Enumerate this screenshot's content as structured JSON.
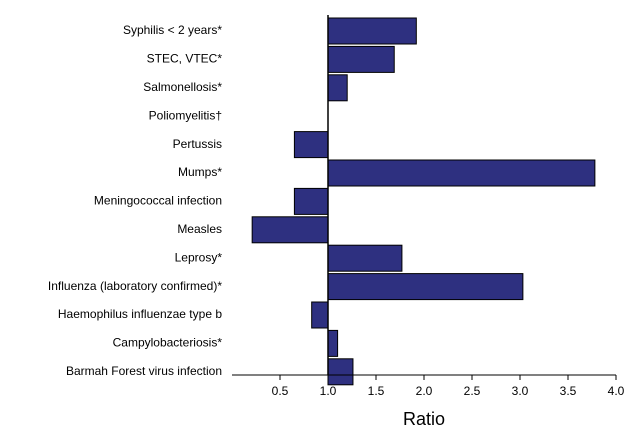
{
  "chart_data": {
    "type": "bar",
    "orientation": "horizontal",
    "baseline": 1,
    "categories": [
      "Syphilis < 2 years*",
      "STEC, VTEC*",
      "Salmonellosis*",
      "Poliomyelitis†",
      "Pertussis",
      "Mumps*",
      "Meningococcal infection",
      "Measles",
      "Leprosy*",
      "Influenza (laboratory confirmed)*",
      "Haemophilus influenzae type b",
      "Campylobacteriosis*",
      "Barmah Forest virus infection"
    ],
    "values": [
      1.92,
      1.69,
      1.2,
      null,
      0.65,
      3.78,
      0.65,
      0.21,
      1.77,
      3.03,
      0.83,
      1.1,
      1.26
    ],
    "color": "#2e3080",
    "xlabel": "Ratio",
    "xlim": [
      0,
      4
    ],
    "xticks": [
      0.5,
      {
        "value": 1,
        "label": "1.0"
      },
      1.5,
      {
        "value": 2,
        "label": "2.0"
      },
      2.5,
      {
        "value": 3,
        "label": "3.0"
      },
      3.5,
      {
        "value": 4,
        "label": "4.0"
      }
    ]
  }
}
